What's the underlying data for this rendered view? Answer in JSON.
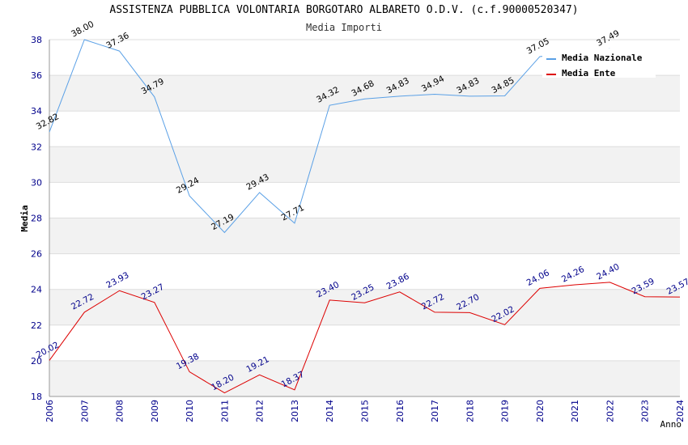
{
  "chart_data": {
    "type": "line",
    "title": "ASSISTENZA PUBBLICA VOLONTARIA BORGOTARO ALBARETO O.D.V. (c.f.90000520347)",
    "subtitle": "Media Importi",
    "xlabel": "Anno",
    "ylabel": "Media",
    "ylim": [
      18,
      38
    ],
    "yticks": [
      "18",
      "20",
      "22",
      "24",
      "26",
      "28",
      "30",
      "32",
      "34",
      "36",
      "38"
    ],
    "grid": true,
    "legend_position": "top-right",
    "categories": [
      "2006",
      "2007",
      "2008",
      "2009",
      "2010",
      "2011",
      "2012",
      "2013",
      "2014",
      "2015",
      "2016",
      "2017",
      "2018",
      "2019",
      "2020",
      "2021",
      "2022",
      "2023",
      "2024"
    ],
    "series": [
      {
        "name": "Media Nazionale",
        "color": "#5aa0e6",
        "values": [
          32.82,
          38.0,
          37.36,
          34.79,
          29.24,
          27.19,
          29.43,
          27.71,
          34.32,
          34.68,
          34.83,
          34.94,
          34.83,
          34.85,
          37.05,
          null,
          37.49,
          null,
          null
        ],
        "labels": [
          "32.82",
          "38.00",
          "37.36",
          "34.79",
          "29.24",
          "27.19",
          "29.43",
          "27.71",
          "34.32",
          "34.68",
          "34.83",
          "34.94",
          "34.83",
          "34.85",
          "37.05",
          "",
          "37.49",
          "",
          ""
        ]
      },
      {
        "name": "Media Ente",
        "color": "#dd0000",
        "values": [
          20.02,
          22.72,
          23.93,
          23.27,
          19.38,
          18.2,
          19.21,
          18.37,
          23.4,
          23.25,
          23.86,
          22.72,
          22.7,
          22.02,
          24.06,
          24.26,
          24.4,
          23.59,
          23.57
        ],
        "labels": [
          "20.02",
          "22.72",
          "23.93",
          "23.27",
          "19.38",
          "18.20",
          "19.21",
          "18.37",
          "23.40",
          "23.25",
          "23.86",
          "22.72",
          "22.70",
          "22.02",
          "24.06",
          "24.26",
          "24.40",
          "23.59",
          "23.57"
        ]
      }
    ]
  }
}
